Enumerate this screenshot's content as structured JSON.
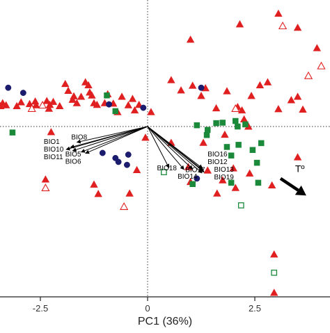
{
  "chart_data": {
    "type": "scatter",
    "xlabel": "PC1 (36%)",
    "ylabel": "",
    "x_ticks": [
      {
        "value": -2.5,
        "label": "-2.5"
      },
      {
        "value": 0,
        "label": "0"
      },
      {
        "value": 2.5,
        "label": "2.5"
      }
    ],
    "xlim": [
      -3.43,
      4.18
    ],
    "ylim": [
      -4.0,
      2.68
    ],
    "grid": false,
    "reference_lines": "dotted lines at x = 0 and y = 0",
    "colors": {
      "red": "#e02020",
      "green": "#1a8a3a",
      "navy": "#1c1c6e",
      "black": "#000000"
    },
    "series": [
      {
        "marker": "filled-triangle",
        "color": "red",
        "points": [
          [
            -3.43,
            0.48
          ],
          [
            -3.38,
            0.55
          ],
          [
            -3.3,
            0.5
          ],
          [
            -3.05,
            0.48
          ],
          [
            -2.95,
            0.57
          ],
          [
            -2.75,
            0.53
          ],
          [
            -2.62,
            0.59
          ],
          [
            -2.6,
            0.5
          ],
          [
            -2.35,
            0.6
          ],
          [
            -2.28,
            0.51
          ],
          [
            -2.2,
            0.58
          ],
          [
            -2.3,
            0.42
          ],
          [
            -2.25,
            -0.13
          ],
          [
            -2.05,
            0.48
          ],
          [
            -1.92,
            1.0
          ],
          [
            -1.85,
            0.84
          ],
          [
            -1.75,
            0.63
          ],
          [
            -1.72,
            0.71
          ],
          [
            -1.65,
            0.55
          ],
          [
            -1.55,
            0.7
          ],
          [
            -1.45,
            1.04
          ],
          [
            -1.38,
            0.97
          ],
          [
            -1.35,
            0.8
          ],
          [
            -1.3,
            0.73
          ],
          [
            -1.25,
            0.55
          ],
          [
            -1.18,
            0.51
          ],
          [
            -1.0,
            0.55
          ],
          [
            -0.93,
            0.76
          ],
          [
            -0.8,
            0.54
          ],
          [
            -0.7,
            0.34
          ],
          [
            -0.6,
            0.7
          ],
          [
            -0.45,
            0.5
          ],
          [
            -0.35,
            0.65
          ],
          [
            -0.3,
            0.38
          ],
          [
            -0.25,
            -1.02
          ],
          [
            -0.2,
            0.51
          ],
          [
            -0.05,
            -0.26
          ],
          [
            0.08,
            0.34
          ],
          [
            0.55,
            1.09
          ],
          [
            0.78,
            0.85
          ],
          [
            1.05,
            0.96
          ],
          [
            1.25,
            0.72
          ],
          [
            1.35,
            0.9
          ],
          [
            1.6,
            0.43
          ],
          [
            1.85,
            0.83
          ],
          [
            2.1,
            0.46
          ],
          [
            2.2,
            0.38
          ],
          [
            2.25,
            0.17
          ],
          [
            2.35,
            0.0
          ],
          [
            2.42,
            0.72
          ],
          [
            2.62,
            0.97
          ],
          [
            2.8,
            1.04
          ],
          [
            3.05,
            0.41
          ],
          [
            3.35,
            0.62
          ],
          [
            3.5,
            0.7
          ],
          [
            3.62,
            0.4
          ],
          [
            3.5,
            -0.72
          ],
          [
            2.9,
            -1.38
          ],
          [
            2.05,
            -1.44
          ],
          [
            1.62,
            -1.57
          ],
          [
            0.55,
            -0.38
          ],
          [
            1.3,
            -0.38
          ],
          [
            1.0,
            -1.3
          ],
          [
            1.75,
            -1.26
          ],
          [
            1.4,
            -1.03
          ],
          [
            2.0,
            -0.98
          ],
          [
            1.0,
            2.04
          ],
          [
            2.15,
            2.4
          ],
          [
            3.05,
            2.65
          ],
          [
            3.5,
            2.32
          ],
          [
            3.95,
            1.84
          ],
          [
            1.8,
            -0.19
          ],
          [
            2.38,
            -1.1
          ],
          [
            0.95,
            -0.95
          ],
          [
            -2.38,
            -1.24
          ],
          [
            -1.25,
            -1.36
          ],
          [
            -1.15,
            -1.58
          ],
          [
            -0.42,
            -1.57
          ],
          [
            2.95,
            -3.0
          ],
          [
            2.95,
            -3.9
          ]
        ]
      },
      {
        "marker": "open-triangle",
        "color": "red",
        "points": [
          [
            -2.45,
            0.5
          ],
          [
            -2.38,
            -1.44
          ],
          [
            -0.55,
            -1.88
          ],
          [
            2.05,
            0.42
          ],
          [
            3.15,
            2.36
          ],
          [
            3.75,
            1.19
          ],
          [
            4.05,
            1.42
          ],
          [
            -2.7,
            0.42
          ]
        ]
      },
      {
        "marker": "filled-square",
        "color": "green",
        "points": [
          [
            -0.95,
            0.73
          ],
          [
            -0.75,
            0.36
          ],
          [
            -3.15,
            -0.14
          ],
          [
            1.15,
            0.03
          ],
          [
            1.4,
            -0.08
          ],
          [
            1.6,
            0.08
          ],
          [
            1.75,
            0.09
          ],
          [
            2.05,
            0.13
          ],
          [
            2.1,
            0.0
          ],
          [
            2.28,
            0.05
          ],
          [
            1.38,
            -0.2
          ],
          [
            1.85,
            -0.48
          ],
          [
            1.95,
            -0.68
          ],
          [
            2.12,
            -0.43
          ],
          [
            2.65,
            -0.39
          ],
          [
            2.45,
            -0.55
          ],
          [
            2.55,
            -0.85
          ],
          [
            2.58,
            -1.32
          ],
          [
            1.05,
            -1.35
          ],
          [
            1.95,
            -1.32
          ]
        ]
      },
      {
        "marker": "open-square",
        "color": "green",
        "points": [
          [
            0.38,
            -1.07
          ],
          [
            2.18,
            -1.85
          ],
          [
            2.95,
            -3.43
          ]
        ]
      },
      {
        "marker": "filled-circle",
        "color": "navy",
        "points": [
          [
            -3.25,
            0.91
          ],
          [
            -2.9,
            0.79
          ],
          [
            -0.9,
            0.52
          ],
          [
            -0.1,
            0.44
          ],
          [
            -1.05,
            -0.62
          ],
          [
            -0.75,
            -0.74
          ],
          [
            -0.45,
            -0.66
          ],
          [
            -0.68,
            -0.83
          ],
          [
            -0.48,
            -0.9
          ],
          [
            1.25,
            0.91
          ],
          [
            1.15,
            -1.22
          ]
        ]
      }
    ],
    "loadings": [
      {
        "label": "BIO8",
        "x": -1.65,
        "y": -0.37
      },
      {
        "label": "BIO1",
        "x": -1.8,
        "y": -0.49
      },
      {
        "label": "BIO10",
        "x": -1.9,
        "y": -0.54
      },
      {
        "label": "BIO11",
        "x": -1.75,
        "y": -0.57
      },
      {
        "label": "BIO5",
        "x": -1.55,
        "y": -0.6
      },
      {
        "label": "BIO6",
        "x": -1.45,
        "y": -0.63
      },
      {
        "label": "BIO18",
        "x": 0.5,
        "y": -0.97
      },
      {
        "label": "BIO14",
        "x": 0.85,
        "y": -1.01
      },
      {
        "label": "BIO17",
        "x": 1.05,
        "y": -1.0
      },
      {
        "label": "BIO16",
        "x": 1.28,
        "y": -0.98
      },
      {
        "label": "BIO12",
        "x": 1.3,
        "y": -1.03
      },
      {
        "label": "BIO13",
        "x": 1.32,
        "y": -1.07
      },
      {
        "label": "BIO19",
        "x": 1.27,
        "y": -1.09
      }
    ],
    "annotation": {
      "text": "Tº",
      "arrow_from": [
        3.1,
        -1.22
      ],
      "arrow_to": [
        3.7,
        -1.62
      ]
    }
  }
}
